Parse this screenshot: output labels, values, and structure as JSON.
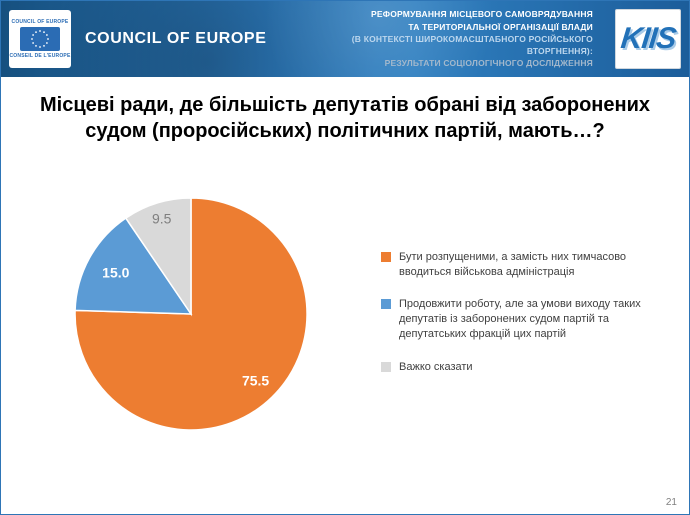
{
  "header": {
    "coe_small_top": "COUNCIL OF EUROPE",
    "coe_small_bottom": "CONSEIL DE L'EUROPE",
    "coe_title": "COUNCIL OF EUROPE",
    "project_lines": [
      "РЕФОРМУВАННЯ МІСЦЕВОГО САМОВРЯДУВАННЯ",
      "ТА ТЕРИТОРІАЛЬНОЇ ОРГАНІЗАЦІЇ ВЛАДИ",
      "(В КОНТЕКСТІ ШИРОКОМАСШТАБНОГО РОСІЙСЬКОГО",
      "ВТОРГНЕННЯ):",
      "РЕЗУЛЬТАТИ СОЦІОЛОГІЧНОГО ДОСЛІДЖЕННЯ"
    ],
    "kiis_logo_text": "KIIS"
  },
  "title": "Місцеві ради, де більшість депутатів обрані від заборонених судом (проросійських) політичних партій, мають…?",
  "footer": {
    "page_number": "21"
  },
  "colors": {
    "header_blue": "#2b76b6",
    "orange": "#ED7D31",
    "blue": "#5B9BD5",
    "gray": "#D9D9D9"
  },
  "chart_data": {
    "type": "pie",
    "title": "",
    "start_angle_deg": 0,
    "direction": "clockwise",
    "legend_position": "right",
    "value_format": "one_decimal",
    "slices": [
      {
        "label": "Бути розпущеними, а замість них тимчасово вводиться військова адміністрація",
        "value": 75.5,
        "color": "#ED7D31",
        "value_color": "#FFFFFF",
        "value_bold": true,
        "value_label_radius": 0.8
      },
      {
        "label": "Продовжити роботу, але за умови виходу таких депутатів із заборонених судом партій та депутатських фракцій цих партій",
        "value": 15.0,
        "color": "#5B9BD5",
        "value_color": "#FFFFFF",
        "value_bold": true,
        "value_label_radius": 0.74
      },
      {
        "label": "Важко сказати",
        "value": 9.5,
        "color": "#D9D9D9",
        "value_color": "#7F7F7F",
        "value_bold": false,
        "value_label_radius": 0.86
      }
    ]
  }
}
